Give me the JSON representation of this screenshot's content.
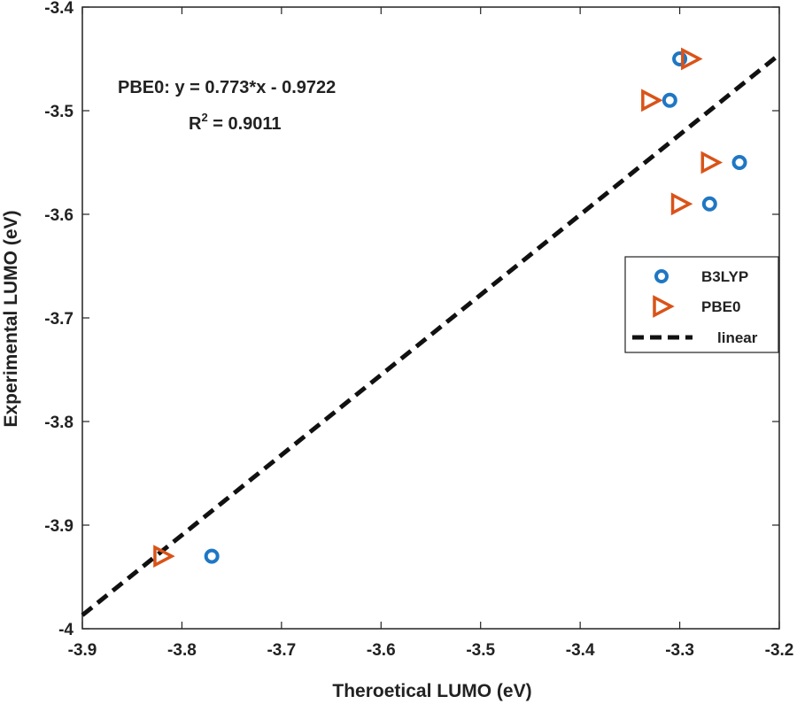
{
  "chart_data": {
    "type": "scatter",
    "xlabel": "Theroetical LUMO (eV)",
    "ylabel": "Experimental LUMO (eV)",
    "xlim": [
      -3.9,
      -3.2
    ],
    "ylim": [
      -4,
      -3.4
    ],
    "xticks": [
      "-3.9",
      "-3.8",
      "-3.7",
      "-3.6",
      "-3.5",
      "-3.4",
      "-3.3",
      "-3.2"
    ],
    "yticks": [
      "-3.4",
      "-3.5",
      "-3.6",
      "-3.7",
      "-3.8",
      "-3.9",
      "-4"
    ],
    "grid": false,
    "legend_position": "right",
    "series": [
      {
        "name": "B3LYP",
        "marker": "circle",
        "color": "#1f77c4",
        "points": [
          {
            "x": -3.3,
            "y": -3.45
          },
          {
            "x": -3.31,
            "y": -3.49
          },
          {
            "x": -3.24,
            "y": -3.55
          },
          {
            "x": -3.27,
            "y": -3.59
          },
          {
            "x": -3.77,
            "y": -3.93
          }
        ]
      },
      {
        "name": "PBE0",
        "marker": "triangle-right",
        "color": "#d95319",
        "points": [
          {
            "x": -3.29,
            "y": -3.45
          },
          {
            "x": -3.33,
            "y": -3.49
          },
          {
            "x": -3.27,
            "y": -3.55
          },
          {
            "x": -3.3,
            "y": -3.59
          },
          {
            "x": -3.82,
            "y": -3.93
          }
        ]
      },
      {
        "name": "linear",
        "type": "line",
        "style": "dashed",
        "color": "#111111",
        "slope": 0.773,
        "intercept": -0.9722
      }
    ],
    "annotations": {
      "equation": "PBE0:  y = 0.773*x - 0.9722",
      "r2_prefix": "R",
      "r2_sup": "2",
      "r2_value": " = 0.9011"
    }
  }
}
